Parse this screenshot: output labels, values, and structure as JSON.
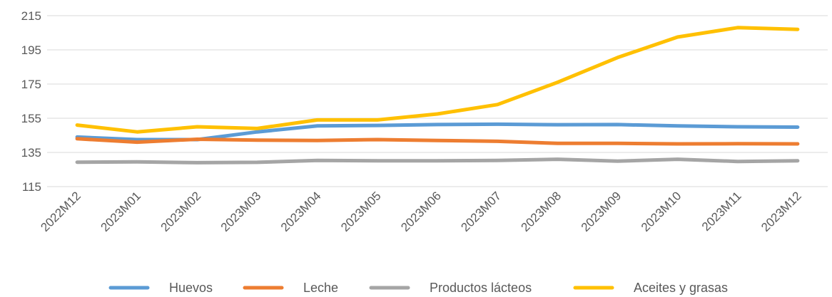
{
  "chart_data": {
    "type": "line",
    "title": "",
    "xlabel": "",
    "ylabel": "",
    "categories": [
      "2022M12",
      "2023M01",
      "2023M02",
      "2023M03",
      "2023M04",
      "2023M05",
      "2023M06",
      "2023M07",
      "2023M08",
      "2023M09",
      "2023M10",
      "2023M11",
      "2023M12"
    ],
    "yticks": [
      "115",
      "135",
      "155",
      "175",
      "195",
      "215"
    ],
    "ylim": [
      115,
      215
    ],
    "grid": true,
    "legend_position": "bottom",
    "series": [
      {
        "name": "Huevos",
        "color": "#5B9BD5",
        "values": [
          144,
          142.5,
          142.5,
          147,
          150.5,
          150.8,
          151.3,
          151.5,
          151.2,
          151.3,
          150.5,
          150,
          149.8
        ]
      },
      {
        "name": "Leche",
        "color": "#ED7D31",
        "values": [
          143,
          141,
          142.7,
          142.2,
          142.0,
          142.5,
          142.0,
          141.5,
          140.3,
          140.3,
          140.0,
          140.1,
          140.0
        ]
      },
      {
        "name": "Productos lácteos",
        "color": "#A5A5A5",
        "values": [
          129.3,
          129.5,
          129.0,
          129.2,
          130.3,
          130.1,
          130.1,
          130.3,
          131.0,
          129.9,
          131.0,
          129.7,
          130.1
        ]
      },
      {
        "name": "Aceites y grasas",
        "color": "#FFC000",
        "values": [
          151,
          147,
          150,
          149,
          154,
          154,
          157.5,
          163,
          176,
          190.5,
          202.5,
          208,
          207
        ]
      }
    ]
  }
}
